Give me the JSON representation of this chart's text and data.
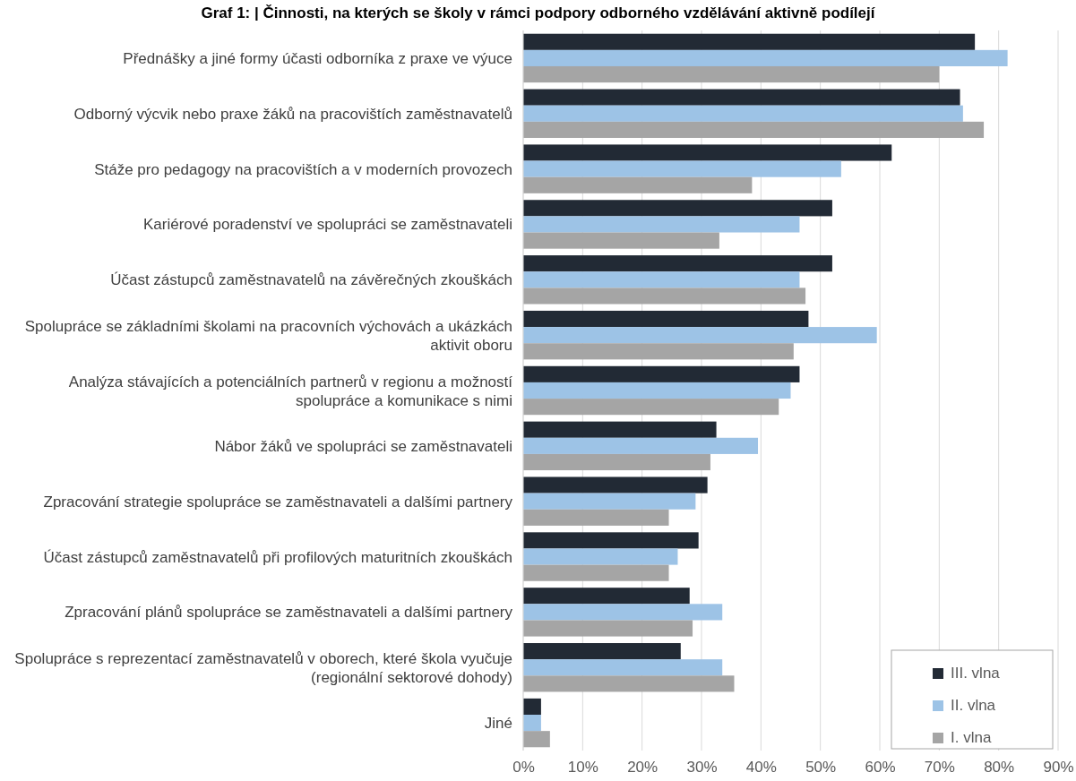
{
  "chart_data": {
    "type": "bar",
    "orientation": "horizontal",
    "title": "Graf 1: | Činnosti, na kterých se školy v rámci podpory odborného vzdělávání aktivně podílejí",
    "categories": [
      "Přednášky a jiné formy účasti odborníka z praxe ve výuce",
      "Odborný výcvik nebo praxe žáků na pracovištích zaměstnavatelů",
      "Stáže pro pedagogy na pracovištích a v moderních provozech",
      "Kariérové poradenství ve spolupráci se zaměstnavateli",
      "Účast zástupců zaměstnavatelů na závěrečných zkouškách",
      "Spolupráce se základními školami na pracovních výchovách a ukázkách aktivit oboru",
      "Analýza stávajících a potenciálních partnerů v regionu a možností spolupráce a komunikace s nimi",
      "Nábor žáků ve spolupráci se zaměstnavateli",
      "Zpracování strategie spolupráce se zaměstnavateli a dalšími partnery",
      "Účast zástupců zaměstnavatelů při profilových maturitních zkouškách",
      "Zpracování plánů spolupráce se zaměstnavateli a dalšími partnery",
      "Spolupráce s reprezentací zaměstnavatelů v oborech, které škola vyučuje (regionální sektorové dohody)",
      "Jiné"
    ],
    "series": [
      {
        "name": "III. vlna",
        "color": "#222a35",
        "values": [
          76,
          73.5,
          62,
          52,
          52,
          48,
          46.5,
          32.5,
          31,
          29.5,
          28,
          26.5,
          3
        ]
      },
      {
        "name": "II. vlna",
        "color": "#9dc3e6",
        "values": [
          81.5,
          74,
          53.5,
          46.5,
          46.5,
          59.5,
          45,
          39.5,
          29,
          26,
          33.5,
          33.5,
          3
        ]
      },
      {
        "name": "I. vlna",
        "color": "#a5a5a5",
        "values": [
          70,
          77.5,
          38.5,
          33,
          47.5,
          45.5,
          43,
          31.5,
          24.5,
          24.5,
          28.5,
          35.5,
          4.5
        ]
      }
    ],
    "xlim": [
      0,
      90
    ],
    "xticks": [
      {
        "value": 0,
        "label": "0%"
      },
      {
        "value": 10,
        "label": "10%"
      },
      {
        "value": 20,
        "label": "20%"
      },
      {
        "value": 30,
        "label": "30%"
      },
      {
        "value": 40,
        "label": "40%"
      },
      {
        "value": 50,
        "label": "50%"
      },
      {
        "value": 60,
        "label": "60%"
      },
      {
        "value": 70,
        "label": "70%"
      },
      {
        "value": 80,
        "label": "80%"
      },
      {
        "value": 90,
        "label": "90%"
      }
    ],
    "grid": "x",
    "legend": "bottom right"
  }
}
